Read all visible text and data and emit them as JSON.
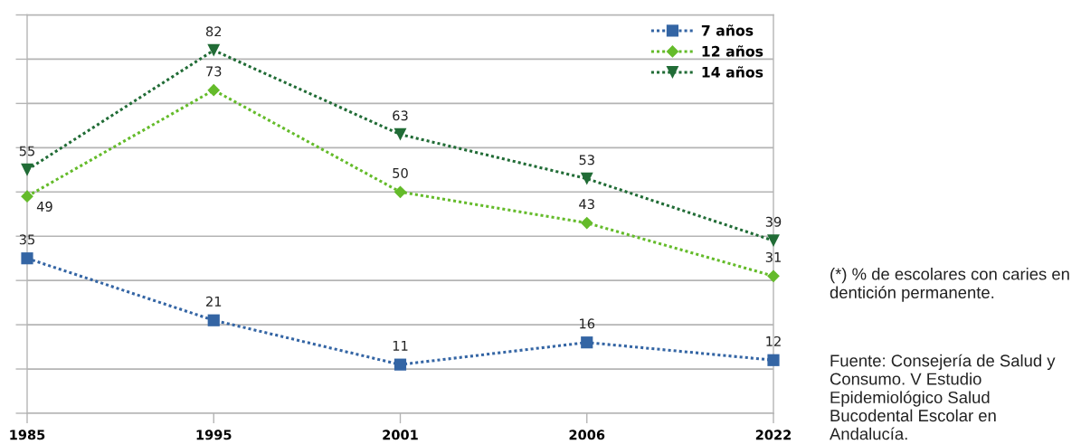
{
  "chart_data": {
    "type": "line",
    "categories": [
      "1985",
      "1995",
      "2001",
      "2006",
      "2022"
    ],
    "series": [
      {
        "name": "7 años",
        "color": "#3465a4",
        "marker": "square",
        "values": [
          35,
          21,
          11,
          16,
          12
        ]
      },
      {
        "name": "12 años",
        "color": "#64bb2a",
        "marker": "diamond",
        "values": [
          49,
          73,
          50,
          43,
          31
        ]
      },
      {
        "name": "14 años",
        "color": "#216c36",
        "marker": "triangle",
        "values": [
          55,
          82,
          63,
          53,
          39
        ]
      }
    ],
    "ylim": [
      0,
      90
    ],
    "yticks": [
      {
        "value": 0,
        "label": null
      },
      {
        "value": 10,
        "label": null
      },
      {
        "value": 20,
        "label": null
      },
      {
        "value": 30,
        "label": null
      },
      {
        "value": 40,
        "label": null
      },
      {
        "value": 50,
        "label": null
      },
      {
        "value": 60,
        "label": null
      },
      {
        "value": 70,
        "label": null
      },
      {
        "value": 80,
        "label": null
      },
      {
        "value": 90,
        "label": null
      }
    ],
    "tick_labels": "x",
    "grid": "y",
    "legend": "top right",
    "line_style": "dotted",
    "data_labels": true,
    "annotations": [
      "(*) % de escolares con caries en dentición permanente.",
      "Fuente: Consejería de Salud y Consumo. V Estudio Epidemiológico Salud Bucodental Escolar en Andalucía."
    ]
  }
}
